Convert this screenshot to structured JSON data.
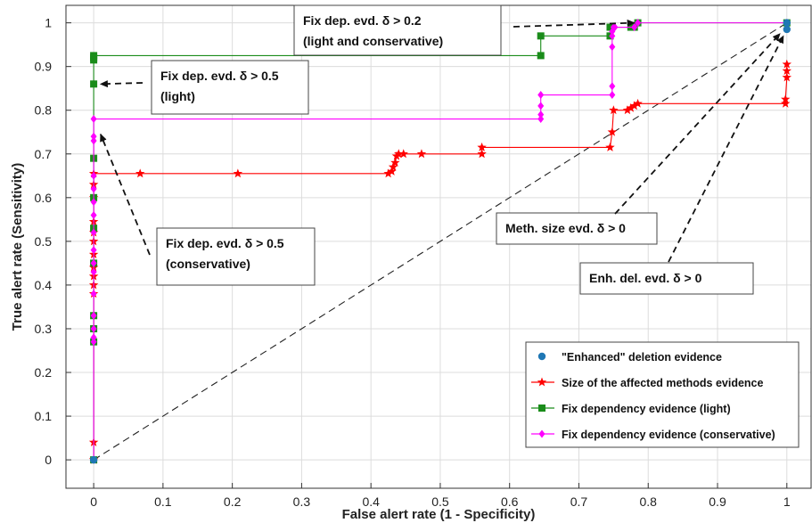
{
  "chart_data": {
    "type": "line",
    "xlabel": "False alert rate (1 - Specificity)",
    "ylabel": "True alert rate (Sensitivity)",
    "xlim": [
      -0.04,
      1.035
    ],
    "ylim": [
      -0.065,
      1.04
    ],
    "xticks": [
      0,
      0.1,
      0.2,
      0.3,
      0.4,
      0.5,
      0.6,
      0.7,
      0.8,
      0.9,
      1
    ],
    "xtick_labels": [
      "0",
      "0.1",
      "0.2",
      "0.3",
      "0.4",
      "0.5",
      "0.6",
      "0.7",
      "0.8",
      "0.9",
      "1"
    ],
    "yticks": [
      0,
      0.1,
      0.2,
      0.3,
      0.4,
      0.5,
      0.6,
      0.7,
      0.8,
      0.9,
      1
    ],
    "ytick_labels": [
      "0",
      "0.1",
      "0.2",
      "0.3",
      "0.4",
      "0.5",
      "0.6",
      "0.7",
      "0.8",
      "0.9",
      "1"
    ],
    "grid": true,
    "legend_position": "bottom-right",
    "series": [
      {
        "name": "\"Enhanced\" deletion evidence",
        "color": "#1f77b4",
        "marker": "circle",
        "line": "dashed-black",
        "x": [
          0,
          1,
          1
        ],
        "y": [
          0,
          0.985,
          1.0
        ]
      },
      {
        "name": "Size of the affected methods evidence",
        "color": "#ff0000",
        "marker": "star",
        "line": "solid",
        "x": [
          0,
          0,
          0,
          0,
          0,
          0,
          0,
          0,
          0,
          0,
          0,
          0,
          0,
          0.067,
          0.208,
          0.425,
          0.43,
          0.432,
          0.435,
          0.437,
          0.44,
          0.447,
          0.473,
          0.56,
          0.56,
          0.745,
          0.748,
          0.75,
          0.77,
          0.775,
          0.78,
          0.785,
          0.998,
          0.998,
          1,
          1,
          1
        ],
        "y": [
          0,
          0.04,
          0.38,
          0.4,
          0.42,
          0.44,
          0.47,
          0.5,
          0.52,
          0.545,
          0.6,
          0.63,
          0.655,
          0.655,
          0.655,
          0.655,
          0.66,
          0.67,
          0.68,
          0.695,
          0.7,
          0.7,
          0.7,
          0.7,
          0.715,
          0.715,
          0.75,
          0.8,
          0.8,
          0.805,
          0.81,
          0.815,
          0.815,
          0.825,
          0.875,
          0.89,
          0.905
        ]
      },
      {
        "name": "Fix dependency evidence (light)",
        "color": "#1a8c1a",
        "marker": "square",
        "line": "solid",
        "x": [
          0,
          0,
          0,
          0,
          0,
          0,
          0,
          0,
          0,
          0,
          0,
          0,
          0.645,
          0.645,
          0.745,
          0.745,
          0.775,
          0.78,
          0.785,
          1
        ],
        "y": [
          0,
          0.27,
          0.3,
          0.33,
          0.45,
          0.53,
          0.6,
          0.69,
          0.86,
          0.915,
          0.92,
          0.925,
          0.925,
          0.97,
          0.97,
          0.99,
          0.99,
          0.99,
          1.0,
          1.0
        ]
      },
      {
        "name": "Fix dependency evidence (conservative)",
        "color": "#ff00ff",
        "marker": "diamond",
        "line": "solid",
        "x": [
          0,
          0,
          0,
          0,
          0,
          0,
          0,
          0,
          0,
          0,
          0,
          0,
          0,
          0,
          0,
          0,
          0,
          0.645,
          0.645,
          0.645,
          0.645,
          0.748,
          0.748,
          0.748,
          0.748,
          0.748,
          0.75,
          0.752,
          0.78,
          0.785,
          1
        ],
        "y": [
          0,
          0.27,
          0.28,
          0.3,
          0.33,
          0.38,
          0.43,
          0.45,
          0.48,
          0.52,
          0.56,
          0.59,
          0.62,
          0.65,
          0.73,
          0.74,
          0.78,
          0.78,
          0.79,
          0.81,
          0.835,
          0.835,
          0.855,
          0.945,
          0.97,
          0.98,
          0.99,
          0.99,
          0.99,
          1.0,
          1.0
        ]
      }
    ],
    "diagonal": {
      "x": [
        0,
        1
      ],
      "y": [
        0,
        1
      ]
    },
    "annotations": [
      {
        "lines": [
          "Fix dep. evd. δ > 0.2",
          "(light and conservative)"
        ],
        "arrow_to": [
          0.78,
          1.0
        ]
      },
      {
        "lines": [
          "Fix dep. evd. δ > 0.5",
          "(light)"
        ],
        "arrow_to": [
          0.01,
          0.86
        ]
      },
      {
        "lines": [
          "Fix dep. evd. δ > 0.5",
          "(conservative)"
        ],
        "arrow_to": [
          0.01,
          0.745
        ]
      },
      {
        "lines": [
          "Meth. size evd. δ > 0"
        ],
        "arrow_to": [
          0.99,
          0.975
        ]
      },
      {
        "lines": [
          "Enh. del. evd. δ > 0"
        ],
        "arrow_to": [
          0.995,
          0.97
        ]
      }
    ]
  }
}
